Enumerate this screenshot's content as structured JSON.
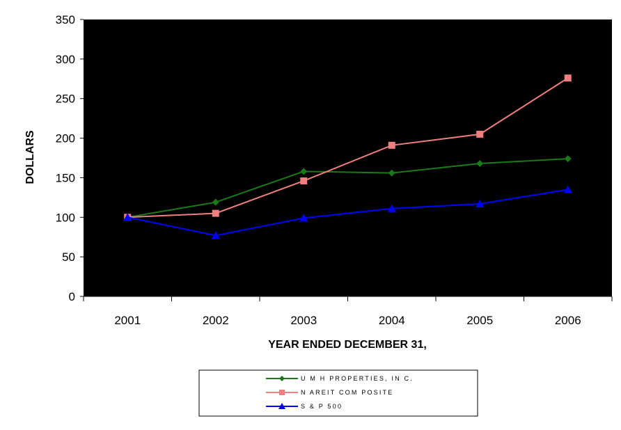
{
  "chart_data": {
    "type": "line",
    "title": "",
    "xlabel": "YEAR ENDED DECEMBER 31,",
    "ylabel": "DOLLARS",
    "categories": [
      "2001",
      "2002",
      "2003",
      "2004",
      "2005",
      "2006"
    ],
    "ylim": [
      0,
      350
    ],
    "yticks": [
      0,
      50,
      100,
      150,
      200,
      250,
      300,
      350
    ],
    "plot_background": "#000000",
    "grid": false,
    "legend_position": "bottom",
    "series": [
      {
        "name": "U M H PROPERTIES, IN C.",
        "color": "#1a7a1a",
        "marker": "diamond",
        "values": [
          100,
          119,
          158,
          156,
          168,
          174
        ]
      },
      {
        "name": "N AREIT COM POSITE",
        "color": "#f08080",
        "marker": "square",
        "values": [
          100,
          105,
          146,
          191,
          205,
          276
        ]
      },
      {
        "name": "S & P 500",
        "color": "#0000ff",
        "marker": "triangle",
        "values": [
          100,
          77,
          99,
          111,
          117,
          135
        ]
      }
    ]
  }
}
